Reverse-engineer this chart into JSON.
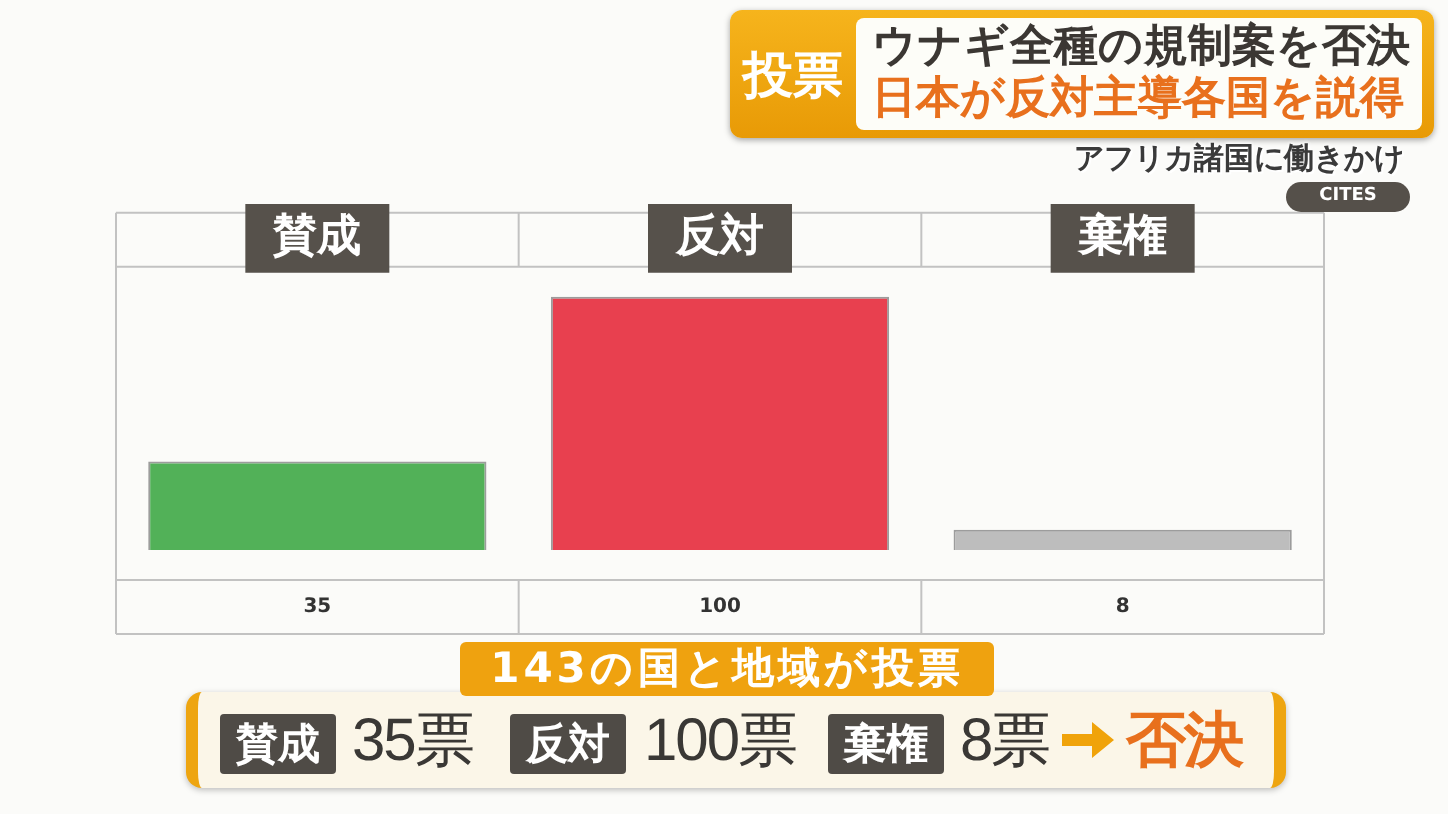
{
  "chart_data": {
    "type": "bar",
    "title": "ウナギ全種の規制案を否決",
    "subtitle": "日本が反対主導各国を説得",
    "categories": [
      "賛成",
      "反対",
      "棄権"
    ],
    "values": [
      35,
      100,
      8
    ],
    "colors": [
      "#52b158",
      "#e8404f",
      "#bdbdbd"
    ],
    "data_labels": true,
    "legend": false,
    "tick_labels": "x",
    "annotations": [
      "投票",
      "アフリカ諸国に働きかけ",
      "CITES",
      "143の国と地域が投票",
      "賛成",
      "35票",
      "反対",
      "100票",
      "棄権",
      "8票",
      "否決"
    ]
  }
}
